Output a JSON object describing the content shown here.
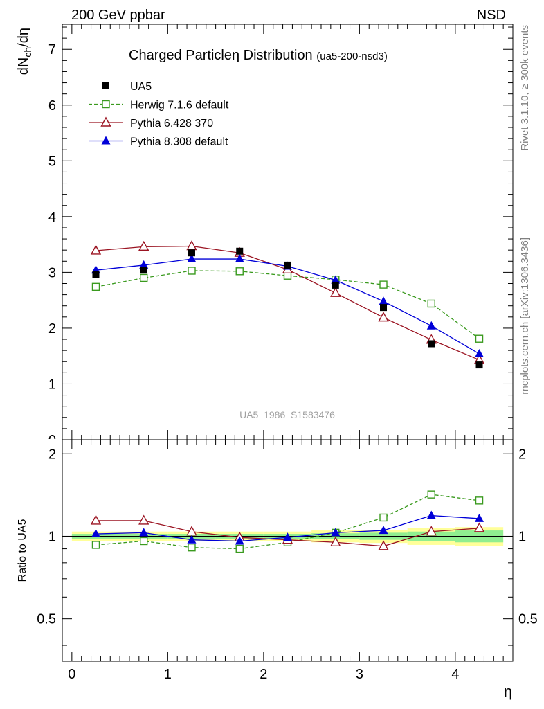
{
  "header": {
    "left": "200 GeV ppbar",
    "right": "NSD"
  },
  "side_labels": {
    "rivet": "Rivet 3.1.10, ≥ 300k events",
    "mcplots": "mcplots.cern.ch [arXiv:1306.3436]"
  },
  "chart_data": [
    {
      "type": "scatter",
      "title_main": "Charged Particleη Distribution",
      "title_sub": "(ua5-200-nsd3)",
      "ylabel": "dN_ch/dη",
      "watermark": "UA5_1986_S1583476",
      "xlim": [
        -0.1,
        4.6
      ],
      "ylim": [
        0,
        7.45
      ],
      "yticks": [
        1,
        2,
        3,
        4,
        5,
        6,
        7
      ],
      "ytick_labels": [
        "1",
        "2",
        "3",
        "4",
        "5",
        "6",
        "7"
      ],
      "bottom_partial_label": "0",
      "legend_position": "top-left",
      "x": [
        0.25,
        0.75,
        1.25,
        1.75,
        2.25,
        2.75,
        3.25,
        3.75,
        4.25
      ],
      "series": [
        {
          "name": "UA5",
          "marker": "square-filled",
          "color": "#000000",
          "line": "none",
          "values": [
            2.96,
            3.04,
            3.35,
            3.38,
            3.13,
            2.77,
            2.37,
            1.72,
            1.34
          ]
        },
        {
          "name": "Herwig 7.1.6 default",
          "marker": "square-open",
          "color": "#3a9a1e",
          "line": "dashed",
          "values": [
            2.74,
            2.9,
            3.03,
            3.02,
            2.94,
            2.87,
            2.78,
            2.44,
            1.81
          ]
        },
        {
          "name": "Pythia 6.428 370",
          "marker": "triangle-open",
          "color": "#9b1422",
          "line": "solid",
          "values": [
            3.39,
            3.46,
            3.47,
            3.35,
            3.05,
            2.63,
            2.19,
            1.79,
            1.43
          ]
        },
        {
          "name": "Pythia 8.308 default",
          "marker": "triangle-filled",
          "color": "#0000d8",
          "line": "solid",
          "values": [
            3.04,
            3.13,
            3.24,
            3.24,
            3.11,
            2.86,
            2.48,
            2.04,
            1.54
          ]
        }
      ]
    },
    {
      "type": "line",
      "ylabel": "Ratio to UA5",
      "xlabel": "η",
      "xlim": [
        -0.1,
        4.6
      ],
      "ylim": [
        0.35,
        2.25
      ],
      "xticks": [
        0,
        1,
        2,
        3,
        4
      ],
      "xtick_labels": [
        "0",
        "1",
        "2",
        "3",
        "4"
      ],
      "yticks": [
        0.5,
        1,
        2
      ],
      "ytick_labels_left": [
        "0.5",
        "1",
        "2"
      ],
      "ytick_labels_right": [
        "0.5",
        "1",
        "2"
      ],
      "x": [
        0.25,
        0.75,
        1.25,
        1.75,
        2.25,
        2.75,
        3.25,
        3.75,
        4.25
      ],
      "bands": {
        "x_edges": [
          0.0,
          0.5,
          1.0,
          1.5,
          2.0,
          2.5,
          3.0,
          3.5,
          4.0,
          4.5
        ],
        "stat_half": [
          0.02,
          0.02,
          0.02,
          0.02,
          0.02,
          0.025,
          0.03,
          0.04,
          0.05
        ],
        "total_half": [
          0.04,
          0.04,
          0.04,
          0.04,
          0.04,
          0.05,
          0.055,
          0.07,
          0.08
        ],
        "stat_color": "#90ee90",
        "total_color": "#ffff99"
      },
      "series": [
        {
          "name": "Herwig 7.1.6 default",
          "marker": "square-open",
          "color": "#3a9a1e",
          "line": "dashed",
          "values": [
            0.93,
            0.96,
            0.91,
            0.9,
            0.95,
            1.03,
            1.17,
            1.42,
            1.35
          ]
        },
        {
          "name": "Pythia 6.428 370",
          "marker": "triangle-open",
          "color": "#9b1422",
          "line": "solid",
          "values": [
            1.14,
            1.14,
            1.04,
            0.99,
            0.97,
            0.95,
            0.92,
            1.04,
            1.07
          ]
        },
        {
          "name": "Pythia 8.308 default",
          "marker": "triangle-filled",
          "color": "#0000d8",
          "line": "solid",
          "values": [
            1.02,
            1.03,
            0.97,
            0.96,
            0.99,
            1.03,
            1.05,
            1.19,
            1.16
          ]
        }
      ]
    }
  ]
}
